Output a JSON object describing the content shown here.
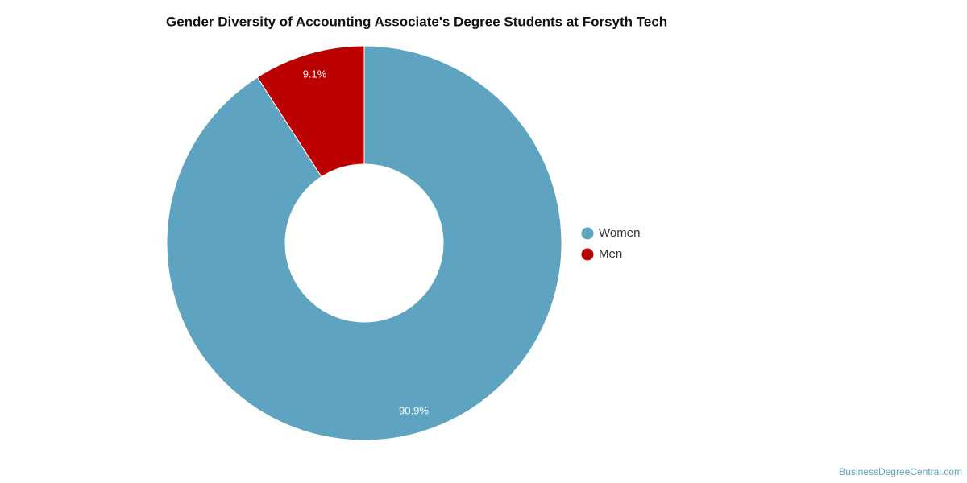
{
  "chart_data": {
    "type": "donut",
    "title": "Gender Diversity of Accounting Associate's Degree Students at Forsyth Tech",
    "categories": [
      "Women",
      "Men"
    ],
    "values": [
      90.9,
      9.1
    ],
    "value_labels": [
      "90.9%",
      "9.1%"
    ],
    "colors": [
      "#5ea3bf",
      "#bb0000"
    ],
    "legend": "right",
    "credit": "BusinessDegreeCentral.com"
  }
}
